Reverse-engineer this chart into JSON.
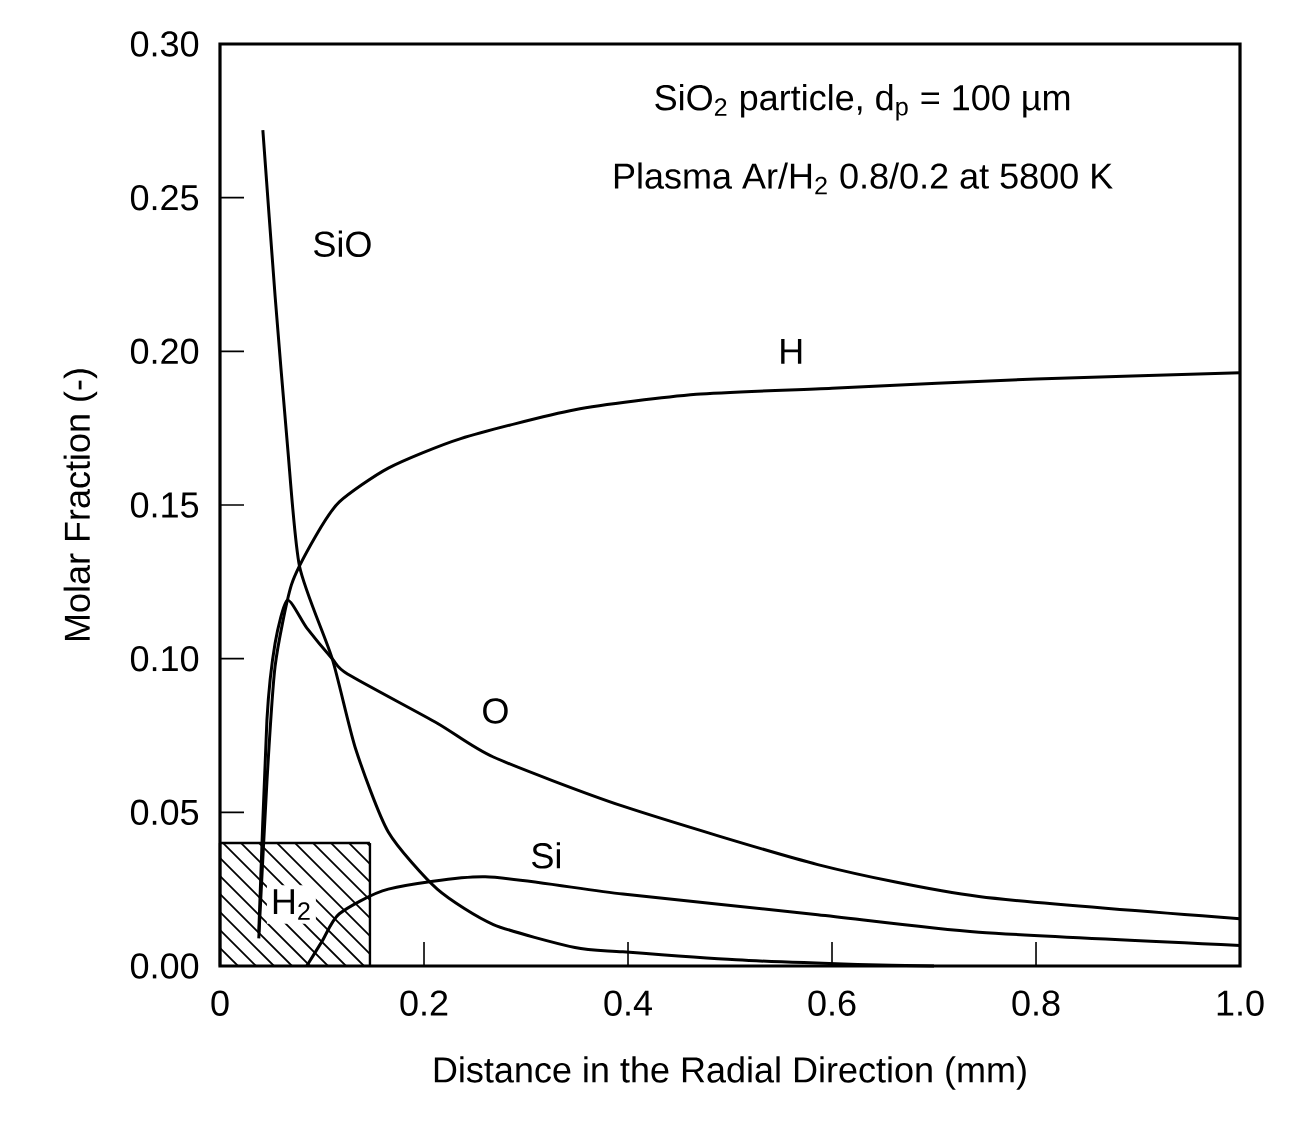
{
  "chart_data": {
    "type": "line",
    "title": "SiO$_{2}$ particle, d$_{p}$ = 100 µm",
    "subtitle": "Plasma Ar/H$_{2}$ 0.8/0.2 at 5800 K",
    "xlabel": "Distance in the Radial Direction (mm)",
    "ylabel": "Molar Fraction (-)",
    "xlim": [
      0,
      1.0
    ],
    "ylim": [
      0,
      0.3
    ],
    "xticks": [
      0,
      0.2,
      0.4,
      0.6,
      0.8,
      {
        "value": 1.0,
        "label": "1.0"
      }
    ],
    "yticks": [
      {
        "value": 0,
        "label": "0.00"
      },
      {
        "value": 0.05,
        "label": "0.05"
      },
      {
        "value": 0.1,
        "label": "0.10"
      },
      {
        "value": 0.15,
        "label": "0.15"
      },
      {
        "value": 0.2,
        "label": "0.20"
      },
      {
        "value": 0.25,
        "label": "0.25"
      },
      {
        "value": 0.3,
        "label": "0.30"
      }
    ],
    "grid": false,
    "marker": "none",
    "line_style": "solid",
    "series": [
      {
        "name": "SiO",
        "color": "#000000",
        "x": [
          0.042,
          0.054,
          0.066,
          0.078,
          0.11,
          0.133,
          0.165,
          0.213,
          0.268,
          0.348,
          0.395,
          0.506,
          0.625,
          0.7
        ],
        "values": [
          0.272,
          0.218,
          0.17,
          0.13,
          0.1,
          0.0706,
          0.0436,
          0.025,
          0.0135,
          0.006,
          0.0046,
          0.002,
          0.0005,
          0
        ]
      },
      {
        "name": "H",
        "color": "#000000",
        "x": [
          0.038,
          0.046,
          0.054,
          0.07,
          0.094,
          0.117,
          0.165,
          0.236,
          0.348,
          0.467,
          0.6,
          0.8,
          1.0
        ],
        "values": [
          0.009,
          0.06,
          0.0975,
          0.124,
          0.14,
          0.151,
          0.162,
          0.1716,
          0.181,
          0.186,
          0.188,
          0.191,
          0.193
        ]
      },
      {
        "name": "O",
        "color": "#000000",
        "x": [
          0.038,
          0.046,
          0.054,
          0.066,
          0.085,
          0.11,
          0.125,
          0.213,
          0.268,
          0.395,
          0.586,
          0.744,
          1.0
        ],
        "values": [
          0.011,
          0.08,
          0.105,
          0.119,
          0.11,
          0.1,
          0.095,
          0.079,
          0.068,
          0.052,
          0.033,
          0.0226,
          0.0154
        ]
      },
      {
        "name": "Si",
        "color": "#000000",
        "x": [
          0.085,
          0.1,
          0.117,
          0.165,
          0.26,
          0.395,
          0.586,
          0.744,
          1.0
        ],
        "values": [
          0,
          0.008,
          0.017,
          0.025,
          0.029,
          0.0234,
          0.0167,
          0.011,
          0.0067
        ]
      }
    ],
    "annotations": [
      {
        "text": "H$_{2}$",
        "x": 0.07,
        "y": 0.02
      }
    ]
  }
}
